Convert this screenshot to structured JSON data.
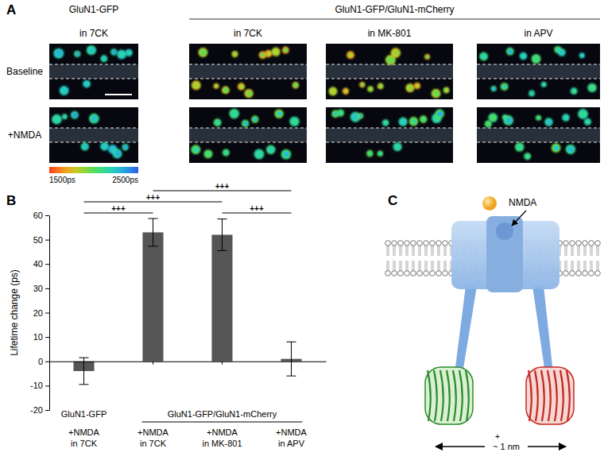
{
  "panel_labels": [
    "A",
    "B",
    "C"
  ],
  "panel_a": {
    "header_single": "GluN1-GFP",
    "header_group": "GluN1-GFP/GluN1-mCherry",
    "columns": [
      "in 7CK",
      "in 7CK",
      "in MK-801",
      "in APV"
    ],
    "rows": [
      "Baseline",
      "+NMDA"
    ],
    "colorbar": {
      "min": {
        "value": 1500,
        "label": "1500ps"
      },
      "max": {
        "value": 2500,
        "label": "2500ps"
      }
    }
  },
  "panel_c": {
    "ligand": "NMDA",
    "plus": "+",
    "distance": "~ 1 nm"
  },
  "chart_data": {
    "type": "bar",
    "y_label": "Lifetime change (ps)",
    "categories": [
      "+NMDA\nin 7CK",
      "+NMDA\nin 7CK",
      "+NMDA\nin MK-801",
      "+NMDA\nin APV"
    ],
    "values": [
      -4,
      53,
      52,
      1
    ],
    "errors": [
      5.5,
      5.7,
      6.5,
      7
    ],
    "color": "#555555",
    "ylim": [
      -20,
      60
    ],
    "yticks": [
      -20,
      -10,
      0,
      10,
      20,
      30,
      40,
      50,
      60
    ],
    "grid": false,
    "annotations": {
      "groups": [
        {
          "label": "GluN1-GFP",
          "categories": [
            0,
            0
          ]
        },
        {
          "label": "GluN1-GFP/GluN1-mCherry",
          "categories": [
            1,
            3
          ]
        }
      ],
      "brackets": [
        {
          "from": 0,
          "to": 1,
          "label": "+++"
        },
        {
          "from": 2,
          "to": 3,
          "label": "+++"
        },
        {
          "from": 0,
          "to": 2,
          "label": "+++"
        },
        {
          "from": 1,
          "to": 3,
          "label": "+++"
        }
      ]
    }
  }
}
